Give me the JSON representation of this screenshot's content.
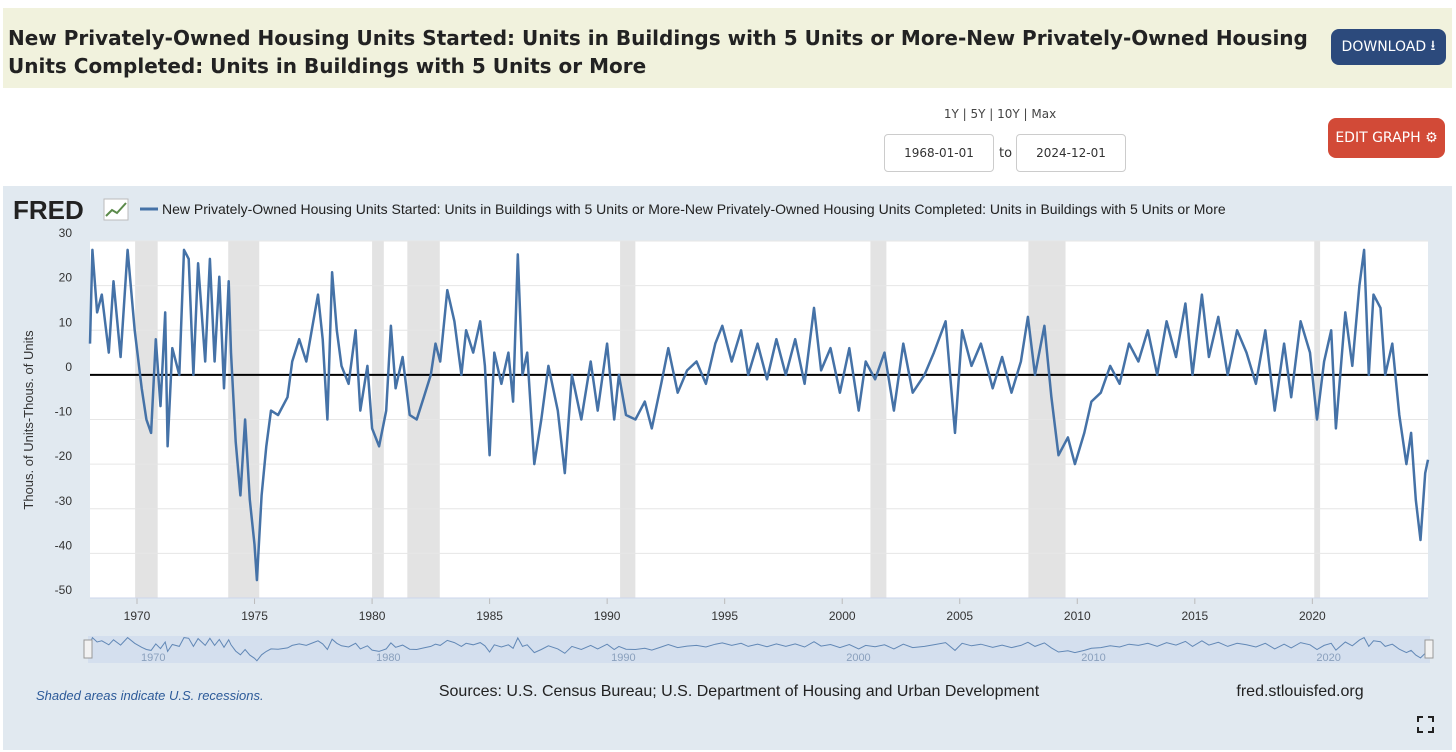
{
  "header": {
    "title": "New Privately-Owned Housing Units Started: Units in Buildings with 5 Units or More-New Privately-Owned Housing Units Completed: Units in Buildings with 5 Units or More",
    "download": "DOWNLOAD"
  },
  "controls": {
    "ranges": "1Y | 5Y | 10Y | Max",
    "start": "1968-01-01",
    "to": "to",
    "end": "2024-12-01",
    "edit": "EDIT GRAPH"
  },
  "footer": {
    "note": "Shaded areas indicate U.S. recessions.",
    "sources": "Sources: U.S. Census Bureau; U.S. Department of Housing and Urban Development",
    "site": "fred.stlouisfed.org"
  },
  "chart_data": {
    "type": "line",
    "logo": "FRED",
    "ylabel": "Thous. of Units-Thous. of Units",
    "xlim": [
      1968,
      2024.92
    ],
    "xticks": [
      1970,
      1975,
      1980,
      1985,
      1990,
      1995,
      2000,
      2005,
      2010,
      2015,
      2020
    ],
    "ylim": [
      -50,
      30
    ],
    "yticks": [
      -50,
      -40,
      -30,
      -20,
      -10,
      0,
      10,
      20,
      30
    ],
    "grid": true,
    "zero_line": true,
    "recessions": [
      [
        1969.92,
        1970.88
      ],
      [
        1973.88,
        1975.2
      ],
      [
        1980.0,
        1980.5
      ],
      [
        1981.5,
        1982.88
      ],
      [
        1990.55,
        1991.2
      ],
      [
        2001.2,
        2001.88
      ],
      [
        2007.92,
        2009.5
      ],
      [
        2020.08,
        2020.33
      ]
    ],
    "x": [
      1968.0,
      1968.1,
      1968.3,
      1968.5,
      1968.8,
      1969.0,
      1969.3,
      1969.6,
      1969.9,
      1970.2,
      1970.4,
      1970.6,
      1970.8,
      1971.0,
      1971.2,
      1971.3,
      1971.5,
      1971.8,
      1972.0,
      1972.2,
      1972.4,
      1972.6,
      1972.9,
      1973.1,
      1973.3,
      1973.5,
      1973.7,
      1973.9,
      1974.0,
      1974.2,
      1974.4,
      1974.6,
      1974.8,
      1975.0,
      1975.1,
      1975.3,
      1975.5,
      1975.7,
      1976.0,
      1976.4,
      1976.6,
      1976.9,
      1977.2,
      1977.5,
      1977.7,
      1977.9,
      1978.1,
      1978.3,
      1978.5,
      1978.7,
      1979.0,
      1979.3,
      1979.5,
      1979.8,
      1980.0,
      1980.3,
      1980.6,
      1980.8,
      1981.0,
      1981.3,
      1981.6,
      1981.9,
      1982.2,
      1982.5,
      1982.7,
      1982.9,
      1983.2,
      1983.5,
      1983.8,
      1984.0,
      1984.3,
      1984.6,
      1984.8,
      1985.0,
      1985.2,
      1985.5,
      1985.8,
      1986.0,
      1986.2,
      1986.4,
      1986.6,
      1986.9,
      1987.2,
      1987.5,
      1987.9,
      1988.2,
      1988.5,
      1988.9,
      1989.3,
      1989.6,
      1990.0,
      1990.3,
      1990.5,
      1990.8,
      1991.2,
      1991.6,
      1991.9,
      1992.3,
      1992.6,
      1993.0,
      1993.4,
      1993.8,
      1994.2,
      1994.6,
      1994.9,
      1995.3,
      1995.7,
      1996.0,
      1996.4,
      1996.8,
      1997.2,
      1997.6,
      1998.0,
      1998.4,
      1998.8,
      1999.1,
      1999.5,
      1999.9,
      2000.3,
      2000.7,
      2001.0,
      2001.4,
      2001.8,
      2002.2,
      2002.6,
      2003.0,
      2003.5,
      2003.9,
      2004.4,
      2004.8,
      2005.1,
      2005.5,
      2005.9,
      2006.4,
      2006.8,
      2007.2,
      2007.6,
      2007.9,
      2008.2,
      2008.6,
      2008.9,
      2009.2,
      2009.6,
      2009.9,
      2010.3,
      2010.6,
      2011.0,
      2011.4,
      2011.8,
      2012.2,
      2012.6,
      2013.0,
      2013.4,
      2013.8,
      2014.2,
      2014.6,
      2014.9,
      2015.3,
      2015.6,
      2016.0,
      2016.4,
      2016.8,
      2017.2,
      2017.6,
      2018.0,
      2018.4,
      2018.8,
      2019.1,
      2019.5,
      2019.9,
      2020.2,
      2020.5,
      2020.8,
      2021.0,
      2021.4,
      2021.7,
      2022.0,
      2022.2,
      2022.4,
      2022.6,
      2022.9,
      2023.1,
      2023.4,
      2023.7,
      2024.0,
      2024.2,
      2024.4,
      2024.6,
      2024.8,
      2024.92
    ],
    "series": [
      {
        "name": "New Privately-Owned Housing Units Started: Units in Buildings with 5 Units or More-New Privately-Owned Housing Units Completed: Units in Buildings with 5 Units or More",
        "color": "#4572a7",
        "values": [
          7,
          28,
          14,
          18,
          5,
          21,
          4,
          28,
          10,
          -3,
          -10,
          -13,
          8,
          -7,
          14,
          -16,
          6,
          0,
          28,
          26,
          0,
          25,
          3,
          26,
          3,
          22,
          -3,
          21,
          5,
          -15,
          -27,
          -10,
          -28,
          -38,
          -46,
          -27,
          -16,
          -8,
          -9,
          -5,
          3,
          8,
          3,
          12,
          18,
          8,
          -10,
          23,
          10,
          2,
          -2,
          10,
          -8,
          2,
          -12,
          -16,
          -8,
          11,
          -3,
          4,
          -9,
          -10,
          -5,
          0,
          7,
          3,
          19,
          12,
          0,
          10,
          5,
          12,
          2,
          -18,
          5,
          -2,
          5,
          -6,
          27,
          0,
          5,
          -20,
          -10,
          2,
          -8,
          -22,
          0,
          -10,
          3,
          -8,
          7,
          -10,
          0,
          -9,
          -10,
          -6,
          -12,
          -2,
          6,
          -4,
          1,
          3,
          -2,
          7,
          11,
          3,
          10,
          0,
          7,
          -1,
          8,
          0,
          8,
          -2,
          15,
          1,
          6,
          -4,
          6,
          -8,
          3,
          -1,
          5,
          -8,
          7,
          -4,
          0,
          5,
          12,
          -13,
          10,
          2,
          7,
          -3,
          4,
          -4,
          3,
          13,
          0,
          11,
          -5,
          -18,
          -14,
          -20,
          -13,
          -6,
          -4,
          2,
          -2,
          7,
          3,
          10,
          0,
          12,
          4,
          16,
          0,
          18,
          4,
          13,
          0,
          10,
          5,
          -2,
          10,
          -8,
          7,
          -5,
          12,
          5,
          -10,
          3,
          10,
          -12,
          14,
          2,
          20,
          28,
          0,
          18,
          15,
          0,
          7,
          -9,
          -20,
          -13,
          -28,
          -37,
          -22,
          -19
        ]
      }
    ]
  }
}
